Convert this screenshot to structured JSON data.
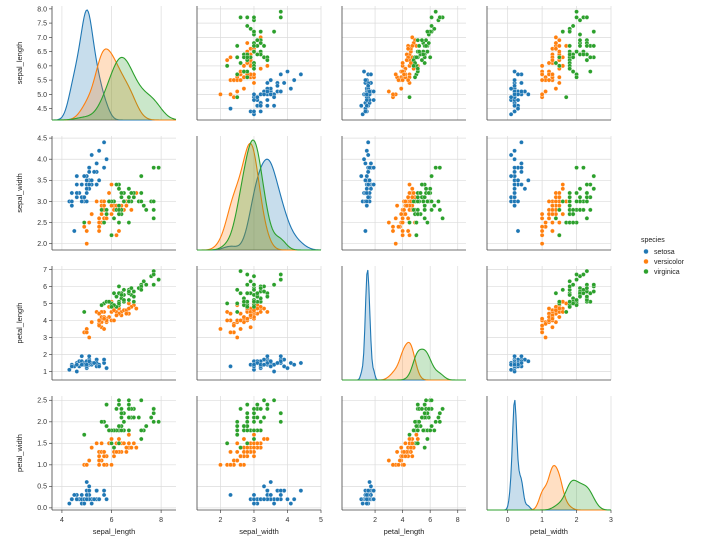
{
  "chart_data": {
    "type": "pairplot",
    "variables": [
      "sepal_length",
      "sepal_width",
      "petal_length",
      "petal_width"
    ],
    "hue": "species",
    "legend": {
      "title": "species",
      "placement": "right",
      "entries": [
        "setosa",
        "versicolor",
        "virginica"
      ]
    },
    "colors": {
      "setosa": "#1f77b4",
      "versicolor": "#ff7f0e",
      "virginica": "#2ca02c"
    },
    "grid": true,
    "axes": {
      "sepal_length": {
        "range": [
          4.1,
          8.1
        ],
        "ticks": [
          4.5,
          5.0,
          5.5,
          6.0,
          6.5,
          7.0,
          7.5,
          8.0
        ],
        "tick_labels": [
          "4.5",
          "5.0",
          "5.5",
          "6.0",
          "6.5",
          "7.0",
          "7.5",
          "8.0"
        ],
        "x_ticks": [
          4,
          6,
          8
        ],
        "x_tick_labels": [
          "4",
          "6",
          "8"
        ],
        "x_range": [
          3.6,
          8.6
        ]
      },
      "sepal_width": {
        "range": [
          1.85,
          4.55
        ],
        "ticks": [
          2.0,
          2.5,
          3.0,
          3.5,
          4.0,
          4.5
        ],
        "tick_labels": [
          "2.0",
          "2.5",
          "3.0",
          "3.5",
          "4.0",
          "4.5"
        ],
        "x_ticks": [
          2,
          3,
          4,
          5
        ],
        "x_tick_labels": [
          "2",
          "3",
          "4",
          "5"
        ],
        "x_range": [
          1.3,
          5.0
        ]
      },
      "petal_length": {
        "range": [
          0.5,
          7.2
        ],
        "ticks": [
          1,
          2,
          3,
          4,
          5,
          6,
          7
        ],
        "tick_labels": [
          "1",
          "2",
          "3",
          "4",
          "5",
          "6",
          "7"
        ],
        "x_ticks": [
          2,
          4,
          6,
          8
        ],
        "x_tick_labels": [
          "2",
          "4",
          "6",
          "8"
        ],
        "x_range": [
          -0.4,
          8.6
        ]
      },
      "petal_width": {
        "range": [
          -0.05,
          2.6
        ],
        "ticks": [
          0.0,
          0.5,
          1.0,
          1.5,
          2.0,
          2.5
        ],
        "tick_labels": [
          "0.0",
          "0.5",
          "1.0",
          "1.5",
          "2.0",
          "2.5"
        ],
        "x_ticks": [
          0,
          1,
          2,
          3
        ],
        "x_tick_labels": [
          "0",
          "1",
          "2",
          "3"
        ],
        "x_range": [
          -0.6,
          3.0
        ]
      }
    },
    "series": [
      {
        "name": "setosa",
        "points": [
          [
            5.1,
            3.5,
            1.4,
            0.2
          ],
          [
            4.9,
            3.0,
            1.4,
            0.2
          ],
          [
            4.7,
            3.2,
            1.3,
            0.2
          ],
          [
            4.6,
            3.1,
            1.5,
            0.2
          ],
          [
            5.0,
            3.6,
            1.4,
            0.2
          ],
          [
            5.4,
            3.9,
            1.7,
            0.4
          ],
          [
            4.6,
            3.4,
            1.4,
            0.3
          ],
          [
            5.0,
            3.4,
            1.5,
            0.2
          ],
          [
            4.4,
            2.9,
            1.4,
            0.2
          ],
          [
            4.9,
            3.1,
            1.5,
            0.1
          ],
          [
            5.4,
            3.7,
            1.5,
            0.2
          ],
          [
            4.8,
            3.4,
            1.6,
            0.2
          ],
          [
            4.8,
            3.0,
            1.4,
            0.1
          ],
          [
            4.3,
            3.0,
            1.1,
            0.1
          ],
          [
            5.8,
            4.0,
            1.2,
            0.2
          ],
          [
            5.7,
            4.4,
            1.5,
            0.4
          ],
          [
            5.4,
            3.9,
            1.3,
            0.4
          ],
          [
            5.1,
            3.5,
            1.4,
            0.3
          ],
          [
            5.7,
            3.8,
            1.7,
            0.3
          ],
          [
            5.1,
            3.8,
            1.5,
            0.3
          ],
          [
            5.4,
            3.4,
            1.7,
            0.2
          ],
          [
            5.1,
            3.7,
            1.5,
            0.4
          ],
          [
            4.6,
            3.6,
            1.0,
            0.2
          ],
          [
            5.1,
            3.3,
            1.7,
            0.5
          ],
          [
            4.8,
            3.4,
            1.9,
            0.2
          ],
          [
            5.0,
            3.0,
            1.6,
            0.2
          ],
          [
            5.0,
            3.4,
            1.6,
            0.4
          ],
          [
            5.2,
            3.5,
            1.5,
            0.2
          ],
          [
            5.2,
            3.4,
            1.4,
            0.2
          ],
          [
            4.7,
            3.2,
            1.6,
            0.2
          ],
          [
            4.8,
            3.1,
            1.6,
            0.2
          ],
          [
            5.4,
            3.4,
            1.5,
            0.4
          ],
          [
            5.2,
            4.1,
            1.5,
            0.1
          ],
          [
            5.5,
            4.2,
            1.4,
            0.2
          ],
          [
            4.9,
            3.1,
            1.5,
            0.2
          ],
          [
            5.0,
            3.2,
            1.2,
            0.2
          ],
          [
            5.5,
            3.5,
            1.3,
            0.2
          ],
          [
            4.9,
            3.6,
            1.4,
            0.1
          ],
          [
            4.4,
            3.0,
            1.3,
            0.2
          ],
          [
            5.1,
            3.4,
            1.5,
            0.2
          ],
          [
            5.0,
            3.5,
            1.3,
            0.3
          ],
          [
            4.5,
            2.3,
            1.3,
            0.3
          ],
          [
            4.4,
            3.2,
            1.3,
            0.2
          ],
          [
            5.0,
            3.5,
            1.6,
            0.6
          ],
          [
            5.1,
            3.8,
            1.9,
            0.4
          ],
          [
            4.8,
            3.0,
            1.4,
            0.3
          ],
          [
            5.1,
            3.8,
            1.6,
            0.2
          ],
          [
            4.6,
            3.2,
            1.4,
            0.2
          ],
          [
            5.3,
            3.7,
            1.5,
            0.2
          ],
          [
            5.0,
            3.3,
            1.4,
            0.2
          ]
        ]
      },
      {
        "name": "versicolor",
        "points": [
          [
            7.0,
            3.2,
            4.7,
            1.4
          ],
          [
            6.4,
            3.2,
            4.5,
            1.5
          ],
          [
            6.9,
            3.1,
            4.9,
            1.5
          ],
          [
            5.5,
            2.3,
            4.0,
            1.3
          ],
          [
            6.5,
            2.8,
            4.6,
            1.5
          ],
          [
            5.7,
            2.8,
            4.5,
            1.3
          ],
          [
            6.3,
            3.3,
            4.7,
            1.6
          ],
          [
            4.9,
            2.4,
            3.3,
            1.0
          ],
          [
            6.6,
            2.9,
            4.6,
            1.3
          ],
          [
            5.2,
            2.7,
            3.9,
            1.4
          ],
          [
            5.0,
            2.0,
            3.5,
            1.0
          ],
          [
            5.9,
            3.0,
            4.2,
            1.5
          ],
          [
            6.0,
            2.2,
            4.0,
            1.0
          ],
          [
            6.1,
            2.9,
            4.7,
            1.4
          ],
          [
            5.6,
            2.9,
            3.6,
            1.3
          ],
          [
            6.7,
            3.1,
            4.4,
            1.4
          ],
          [
            5.6,
            3.0,
            4.5,
            1.5
          ],
          [
            5.8,
            2.7,
            4.1,
            1.0
          ],
          [
            6.2,
            2.2,
            4.5,
            1.5
          ],
          [
            5.6,
            2.5,
            3.9,
            1.1
          ],
          [
            5.9,
            3.2,
            4.8,
            1.8
          ],
          [
            6.1,
            2.8,
            4.0,
            1.3
          ],
          [
            6.3,
            2.5,
            4.9,
            1.5
          ],
          [
            6.1,
            2.8,
            4.7,
            1.2
          ],
          [
            6.4,
            2.9,
            4.3,
            1.3
          ],
          [
            6.6,
            3.0,
            4.4,
            1.4
          ],
          [
            6.8,
            2.8,
            4.8,
            1.4
          ],
          [
            6.7,
            3.0,
            5.0,
            1.7
          ],
          [
            6.0,
            2.9,
            4.5,
            1.5
          ],
          [
            5.7,
            2.6,
            3.5,
            1.0
          ],
          [
            5.5,
            2.4,
            3.8,
            1.1
          ],
          [
            5.5,
            2.4,
            3.7,
            1.0
          ],
          [
            5.8,
            2.7,
            3.9,
            1.2
          ],
          [
            6.0,
            2.7,
            5.1,
            1.6
          ],
          [
            5.4,
            3.0,
            4.5,
            1.5
          ],
          [
            6.0,
            3.4,
            4.5,
            1.6
          ],
          [
            6.7,
            3.1,
            4.7,
            1.5
          ],
          [
            6.3,
            2.3,
            4.4,
            1.3
          ],
          [
            5.6,
            3.0,
            4.1,
            1.3
          ],
          [
            5.5,
            2.5,
            4.0,
            1.3
          ],
          [
            5.5,
            2.6,
            4.4,
            1.2
          ],
          [
            6.1,
            3.0,
            4.6,
            1.4
          ],
          [
            5.8,
            2.6,
            4.0,
            1.2
          ],
          [
            5.0,
            2.3,
            3.3,
            1.0
          ],
          [
            5.6,
            2.7,
            4.2,
            1.3
          ],
          [
            5.7,
            3.0,
            4.2,
            1.2
          ],
          [
            5.7,
            2.9,
            4.2,
            1.3
          ],
          [
            6.2,
            2.9,
            4.3,
            1.3
          ],
          [
            5.1,
            2.5,
            3.0,
            1.1
          ],
          [
            5.7,
            2.8,
            4.1,
            1.3
          ]
        ]
      },
      {
        "name": "virginica",
        "points": [
          [
            6.3,
            3.3,
            6.0,
            2.5
          ],
          [
            5.8,
            2.7,
            5.1,
            1.9
          ],
          [
            7.1,
            3.0,
            5.9,
            2.1
          ],
          [
            6.3,
            2.9,
            5.6,
            1.8
          ],
          [
            6.5,
            3.0,
            5.8,
            2.2
          ],
          [
            7.6,
            3.0,
            6.6,
            2.1
          ],
          [
            4.9,
            2.5,
            4.5,
            1.7
          ],
          [
            7.3,
            2.9,
            6.3,
            1.8
          ],
          [
            6.7,
            2.5,
            5.8,
            1.8
          ],
          [
            7.2,
            3.6,
            6.1,
            2.5
          ],
          [
            6.5,
            3.2,
            5.1,
            2.0
          ],
          [
            6.4,
            2.7,
            5.3,
            1.9
          ],
          [
            6.8,
            3.0,
            5.5,
            2.1
          ],
          [
            5.7,
            2.5,
            5.0,
            2.0
          ],
          [
            5.8,
            2.8,
            5.1,
            2.4
          ],
          [
            6.4,
            3.2,
            5.3,
            2.3
          ],
          [
            6.5,
            3.0,
            5.5,
            1.8
          ],
          [
            7.7,
            3.8,
            6.7,
            2.2
          ],
          [
            7.7,
            2.6,
            6.9,
            2.3
          ],
          [
            6.0,
            2.2,
            5.0,
            1.5
          ],
          [
            6.9,
            3.2,
            5.7,
            2.3
          ],
          [
            5.6,
            2.8,
            4.9,
            2.0
          ],
          [
            7.7,
            2.8,
            6.7,
            2.0
          ],
          [
            6.3,
            2.7,
            4.9,
            1.8
          ],
          [
            6.7,
            3.3,
            5.7,
            2.1
          ],
          [
            7.2,
            3.2,
            6.0,
            1.8
          ],
          [
            6.2,
            2.8,
            4.8,
            1.8
          ],
          [
            6.1,
            3.0,
            4.9,
            1.8
          ],
          [
            6.4,
            2.8,
            5.6,
            2.1
          ],
          [
            7.2,
            3.0,
            5.8,
            1.6
          ],
          [
            7.4,
            2.8,
            6.1,
            1.9
          ],
          [
            7.9,
            3.8,
            6.4,
            2.0
          ],
          [
            6.4,
            2.8,
            5.6,
            2.2
          ],
          [
            6.3,
            2.8,
            5.1,
            1.5
          ],
          [
            6.1,
            2.6,
            5.6,
            1.4
          ],
          [
            7.7,
            3.0,
            6.1,
            2.3
          ],
          [
            6.3,
            3.4,
            5.6,
            2.4
          ],
          [
            6.4,
            3.1,
            5.5,
            1.8
          ],
          [
            6.0,
            3.0,
            4.8,
            1.8
          ],
          [
            6.9,
            3.1,
            5.4,
            2.1
          ],
          [
            6.7,
            3.1,
            5.6,
            2.4
          ],
          [
            6.9,
            3.1,
            5.1,
            2.3
          ],
          [
            5.8,
            2.7,
            5.1,
            1.9
          ],
          [
            6.8,
            3.2,
            5.9,
            2.3
          ],
          [
            6.7,
            3.3,
            5.7,
            2.5
          ],
          [
            6.7,
            3.0,
            5.2,
            2.3
          ],
          [
            6.3,
            2.5,
            5.0,
            1.9
          ],
          [
            6.5,
            3.0,
            5.2,
            2.0
          ],
          [
            6.2,
            3.4,
            5.4,
            2.3
          ],
          [
            5.9,
            3.0,
            5.1,
            1.8
          ]
        ]
      }
    ]
  }
}
